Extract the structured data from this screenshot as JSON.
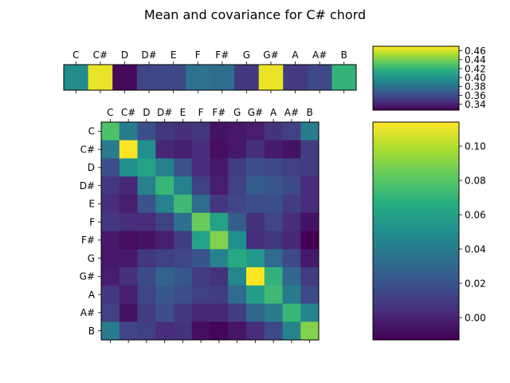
{
  "title": "Mean and covariance for C# chord",
  "colormap": "viridis",
  "chart_data": [
    {
      "type": "heatmap",
      "name": "mean",
      "x_labels": [
        "C",
        "C#",
        "D",
        "D#",
        "E",
        "F",
        "F#",
        "G",
        "G#",
        "A",
        "A#",
        "B"
      ],
      "values": [
        [
          0.396,
          0.466,
          0.331,
          0.357,
          0.358,
          0.382,
          0.379,
          0.351,
          0.466,
          0.352,
          0.359,
          0.421
        ]
      ],
      "colorbar": {
        "range": [
          0.327,
          0.47
        ],
        "ticks": [
          0.34,
          0.36,
          0.38,
          0.4,
          0.42,
          0.44,
          0.46
        ],
        "tick_labels": [
          "0.34",
          "0.36",
          "0.38",
          "0.40",
          "0.42",
          "0.44",
          "0.46"
        ]
      }
    },
    {
      "type": "heatmap",
      "name": "covariance",
      "x_labels": [
        "C",
        "C#",
        "D",
        "D#",
        "E",
        "F",
        "F#",
        "G",
        "G#",
        "A",
        "A#",
        "B"
      ],
      "y_labels": [
        "C",
        "C#",
        "D",
        "D#",
        "E",
        "F",
        "F#",
        "G",
        "G#",
        "A",
        "A#",
        "B"
      ],
      "values": [
        [
          0.078,
          0.04,
          0.018,
          0.008,
          0.005,
          0.008,
          -0.006,
          -0.004,
          -0.002,
          0.007,
          0.012,
          0.04
        ],
        [
          0.04,
          0.113,
          0.05,
          0.002,
          -0.001,
          0.004,
          -0.008,
          -0.004,
          0.005,
          -0.003,
          -0.006,
          0.01
        ],
        [
          0.018,
          0.05,
          0.06,
          0.043,
          0.02,
          0.004,
          -0.004,
          0.01,
          0.018,
          0.015,
          0.012,
          0.01
        ],
        [
          0.008,
          0.002,
          0.043,
          0.072,
          0.044,
          0.012,
          -0.002,
          0.012,
          0.025,
          0.022,
          0.016,
          0.004
        ],
        [
          0.004,
          -0.002,
          0.02,
          0.044,
          0.074,
          0.032,
          0.008,
          0.014,
          0.018,
          0.018,
          0.01,
          0.004
        ],
        [
          0.008,
          0.004,
          0.004,
          0.012,
          0.034,
          0.085,
          0.06,
          0.025,
          0.006,
          0.014,
          0.004,
          -0.006
        ],
        [
          -0.004,
          -0.008,
          -0.006,
          -0.002,
          0.01,
          0.06,
          0.09,
          0.05,
          0.004,
          0.008,
          0.002,
          -0.013
        ],
        [
          -0.004,
          -0.004,
          0.008,
          0.012,
          0.014,
          0.02,
          0.044,
          0.065,
          0.056,
          0.032,
          0.016,
          -0.004
        ],
        [
          -0.002,
          0.006,
          0.016,
          0.028,
          0.022,
          0.01,
          0.006,
          0.046,
          0.114,
          0.07,
          0.03,
          0.01
        ],
        [
          0.008,
          -0.002,
          0.014,
          0.022,
          0.018,
          0.012,
          0.01,
          0.032,
          0.058,
          0.074,
          0.04,
          0.016
        ],
        [
          0.012,
          -0.006,
          0.01,
          0.018,
          0.008,
          0.002,
          0.002,
          0.01,
          0.03,
          0.04,
          0.072,
          0.044
        ],
        [
          0.04,
          0.014,
          0.012,
          0.004,
          0.006,
          -0.008,
          -0.011,
          -0.005,
          0.004,
          0.016,
          0.044,
          0.09
        ]
      ],
      "colorbar": {
        "range": [
          -0.013,
          0.114
        ],
        "ticks": [
          0.0,
          0.02,
          0.04,
          0.06,
          0.08,
          0.1
        ],
        "tick_labels": [
          "0.00",
          "0.02",
          "0.04",
          "0.06",
          "0.08",
          "0.10"
        ]
      }
    }
  ]
}
